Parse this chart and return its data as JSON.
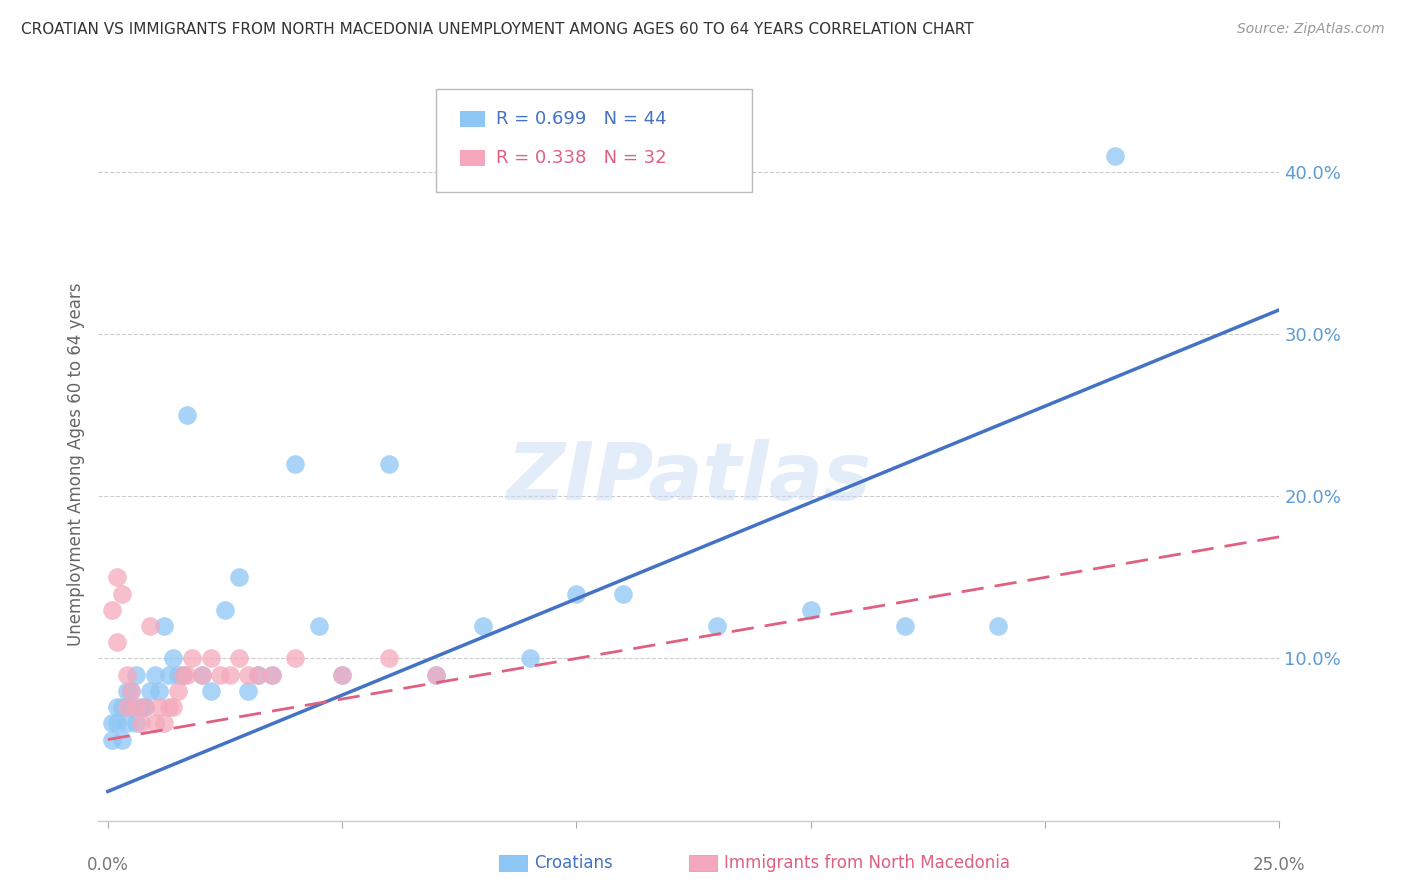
{
  "title": "CROATIAN VS IMMIGRANTS FROM NORTH MACEDONIA UNEMPLOYMENT AMONG AGES 60 TO 64 YEARS CORRELATION CHART",
  "source": "Source: ZipAtlas.com",
  "ylabel": "Unemployment Among Ages 60 to 64 years",
  "xmin": 0.0,
  "xmax": 0.25,
  "ymin": 0.0,
  "ymax": 0.44,
  "yticks": [
    0.0,
    0.1,
    0.2,
    0.3,
    0.4
  ],
  "ytick_labels": [
    "",
    "10.0%",
    "20.0%",
    "30.0%",
    "40.0%"
  ],
  "background_color": "#ffffff",
  "watermark": "ZIPatlas",
  "croatians_color": "#8ec6f5",
  "immigrants_color": "#f5a8bc",
  "croatians_line_color": "#4472c4",
  "immigrants_line_color": "#e06080",
  "R_croatians": 0.699,
  "N_croatians": 44,
  "R_immigrants": 0.338,
  "N_immigrants": 32,
  "blue_line_x0": 0.0,
  "blue_line_y0": 0.018,
  "blue_line_x1": 0.25,
  "blue_line_y1": 0.315,
  "pink_line_x0": 0.0,
  "pink_line_y0": 0.05,
  "pink_line_x1": 0.25,
  "pink_line_y1": 0.175,
  "croatians_x": [
    0.001,
    0.001,
    0.002,
    0.002,
    0.003,
    0.003,
    0.004,
    0.004,
    0.005,
    0.005,
    0.006,
    0.006,
    0.007,
    0.008,
    0.009,
    0.01,
    0.011,
    0.012,
    0.013,
    0.014,
    0.015,
    0.016,
    0.017,
    0.02,
    0.022,
    0.025,
    0.028,
    0.03,
    0.032,
    0.035,
    0.04,
    0.045,
    0.05,
    0.06,
    0.07,
    0.08,
    0.09,
    0.1,
    0.11,
    0.13,
    0.15,
    0.17,
    0.19,
    0.215
  ],
  "croatians_y": [
    0.05,
    0.06,
    0.06,
    0.07,
    0.05,
    0.07,
    0.06,
    0.08,
    0.07,
    0.08,
    0.06,
    0.09,
    0.07,
    0.07,
    0.08,
    0.09,
    0.08,
    0.12,
    0.09,
    0.1,
    0.09,
    0.09,
    0.25,
    0.09,
    0.08,
    0.13,
    0.15,
    0.08,
    0.09,
    0.09,
    0.22,
    0.12,
    0.09,
    0.22,
    0.09,
    0.12,
    0.1,
    0.14,
    0.14,
    0.12,
    0.13,
    0.12,
    0.12,
    0.41
  ],
  "immigrants_x": [
    0.001,
    0.002,
    0.002,
    0.003,
    0.004,
    0.004,
    0.005,
    0.006,
    0.007,
    0.008,
    0.009,
    0.01,
    0.011,
    0.012,
    0.013,
    0.014,
    0.015,
    0.016,
    0.017,
    0.018,
    0.02,
    0.022,
    0.024,
    0.026,
    0.028,
    0.03,
    0.032,
    0.035,
    0.04,
    0.05,
    0.06,
    0.07
  ],
  "immigrants_y": [
    0.13,
    0.15,
    0.11,
    0.14,
    0.07,
    0.09,
    0.08,
    0.07,
    0.06,
    0.07,
    0.12,
    0.06,
    0.07,
    0.06,
    0.07,
    0.07,
    0.08,
    0.09,
    0.09,
    0.1,
    0.09,
    0.1,
    0.09,
    0.09,
    0.1,
    0.09,
    0.09,
    0.09,
    0.1,
    0.09,
    0.1,
    0.09
  ]
}
